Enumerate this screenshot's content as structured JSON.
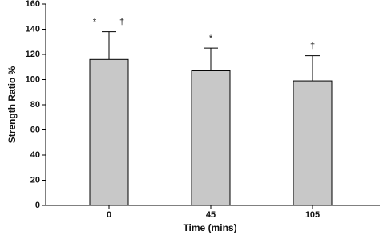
{
  "chart_data": {
    "type": "bar",
    "xlabel": "Time (mins)",
    "ylabel": "Strength Ratio %",
    "categories": [
      "0",
      "45",
      "105"
    ],
    "values": [
      116,
      107,
      99
    ],
    "errors": [
      22,
      18,
      20
    ],
    "annotations": [
      [
        "*",
        "†"
      ],
      [
        "*"
      ],
      [
        "†"
      ]
    ],
    "color": "#c8c8c8",
    "ylim": [
      0,
      160
    ],
    "yticks": [
      0,
      20,
      40,
      60,
      80,
      100,
      120,
      140,
      160
    ]
  }
}
